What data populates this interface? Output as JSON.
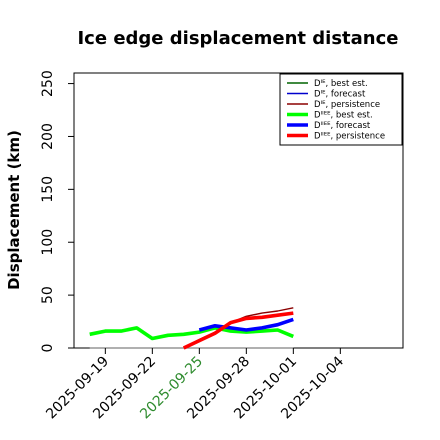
{
  "chart_data": {
    "type": "line",
    "title": "Ice edge displacement distance",
    "xlabel": "",
    "ylabel": "Displacement (km)",
    "ylim": [
      0,
      260
    ],
    "xlim": [
      "2025-09-17",
      "2025-10-08"
    ],
    "x_ticks": [
      "2025-09-19",
      "2025-09-22",
      "2025-09-25",
      "2025-09-28",
      "2025-10-01",
      "2025-10-04"
    ],
    "x_tick_colors": [
      "#000000",
      "#000000",
      "#2e8b2e",
      "#000000",
      "#000000",
      "#000000"
    ],
    "y_ticks": [
      "0",
      "50",
      "100",
      "150",
      "200",
      "250"
    ],
    "grid": false,
    "legend": "top-right",
    "reference_line": {
      "y": 0,
      "x_start": "2025-09-18",
      "x_end": "2025-10-01",
      "color": "#808080"
    },
    "series": [
      {
        "name": "Dᴵᴱ, best est.",
        "color": "#006400",
        "width": "thin",
        "x": [],
        "values": []
      },
      {
        "name": "Dᴵᴱ, forecast",
        "color": "#0000cd",
        "width": "thin",
        "x": [],
        "values": []
      },
      {
        "name": "Dᴵᴱ, persistence",
        "color": "#8b0000",
        "width": "thin",
        "x": [
          "2025-09-24",
          "2025-09-25",
          "2025-09-26",
          "2025-09-27",
          "2025-09-28",
          "2025-09-29",
          "2025-09-30",
          "2025-10-01"
        ],
        "values": [
          0,
          8,
          15,
          24,
          30,
          33,
          35,
          38
        ]
      },
      {
        "name": "Dᴵᴵᴱᴱ, best est.",
        "color": "#00ff00",
        "width": "thick",
        "x": [
          "2025-09-18",
          "2025-09-19",
          "2025-09-20",
          "2025-09-21",
          "2025-09-22",
          "2025-09-23",
          "2025-09-24",
          "2025-09-25",
          "2025-09-26",
          "2025-09-27",
          "2025-09-28",
          "2025-09-29",
          "2025-09-30",
          "2025-10-01"
        ],
        "values": [
          13,
          16,
          16,
          19,
          9,
          12,
          13,
          15,
          19,
          16,
          15,
          16,
          17,
          11
        ]
      },
      {
        "name": "Dᴵᴵᴱᴱ, forecast",
        "color": "#0000ff",
        "width": "thick",
        "x": [
          "2025-09-25",
          "2025-09-26",
          "2025-09-27",
          "2025-09-28",
          "2025-09-29",
          "2025-09-30",
          "2025-10-01"
        ],
        "values": [
          17,
          21,
          19,
          17,
          19,
          22,
          27
        ]
      },
      {
        "name": "Dᴵᴵᴱᴱ, persistence",
        "color": "#ff0000",
        "width": "thick",
        "x": [
          "2025-09-24",
          "2025-09-25",
          "2025-09-26",
          "2025-09-27",
          "2025-09-28",
          "2025-09-29",
          "2025-09-30",
          "2025-10-01"
        ],
        "values": [
          0,
          7,
          14,
          24,
          28,
          29,
          31,
          33
        ]
      }
    ]
  }
}
